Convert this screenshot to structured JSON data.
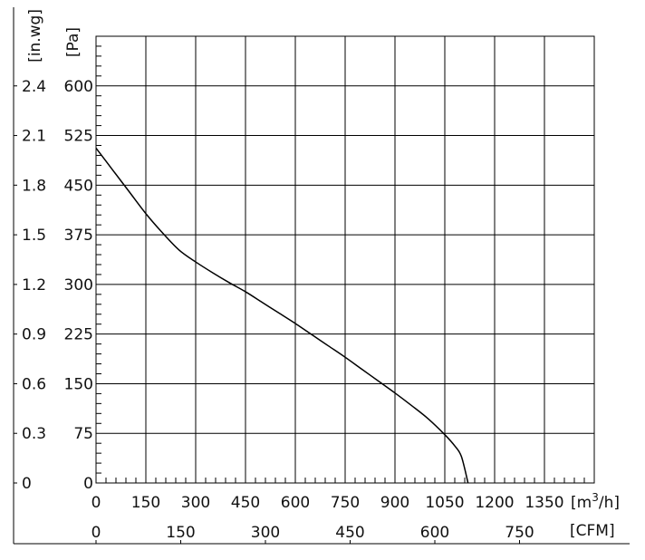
{
  "chart_data": {
    "type": "line",
    "series": [
      {
        "x": [
          0,
          50,
          100,
          150,
          200,
          250,
          300,
          350,
          400,
          450,
          500,
          550,
          600,
          650,
          700,
          750,
          800,
          850,
          900,
          950,
          1000,
          1050,
          1080,
          1100,
          1120
        ],
        "values": [
          506,
          473,
          440,
          407,
          378,
          352,
          334,
          318,
          303,
          289,
          273,
          257,
          241,
          224,
          207,
          190,
          172,
          154,
          136,
          117,
          97,
          73,
          56,
          40,
          0
        ]
      }
    ],
    "x_axis": {
      "unit_label": "[m³/h]",
      "range": [
        0,
        1500
      ],
      "ticks": [
        0,
        150,
        300,
        450,
        600,
        750,
        900,
        1050,
        1200,
        1350
      ],
      "tick_labels": [
        "0",
        "150",
        "300",
        "450",
        "600",
        "750",
        "900",
        "1050",
        "1200",
        "1350"
      ]
    },
    "x2_axis": {
      "unit_label": "[CFM]",
      "ticks": [
        0,
        150,
        300,
        450,
        600,
        750
      ],
      "tick_labels": [
        "0",
        "150",
        "300",
        "450",
        "600",
        "750"
      ]
    },
    "y_axis": {
      "unit_label": "[Pa]",
      "range": [
        0,
        675
      ],
      "ticks": [
        0,
        75,
        150,
        225,
        300,
        375,
        450,
        525,
        600
      ],
      "tick_labels": [
        "0",
        "75",
        "150",
        "225",
        "300",
        "375",
        "450",
        "525",
        "600"
      ]
    },
    "y2_axis": {
      "unit_label": "[in.wg]",
      "ticks": [
        0,
        0.3,
        0.6,
        0.9,
        1.2,
        1.5,
        1.8,
        2.1,
        2.4
      ],
      "tick_labels": [
        "0",
        "0.3",
        "0.6",
        "0.9",
        "1.2",
        "1.5",
        "1.8",
        "2.1",
        "2.4"
      ]
    },
    "grid": true
  }
}
